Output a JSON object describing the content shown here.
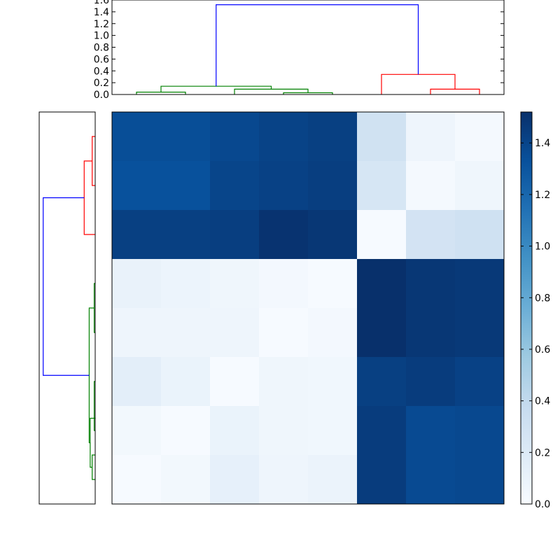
{
  "chart_data": [
    {
      "type": "dendrogram",
      "position": "top",
      "yaxis": {
        "range": [
          0,
          1.6
        ],
        "ticks": [
          0.0,
          0.2,
          0.4,
          0.6,
          0.8,
          1.0,
          1.2,
          1.4,
          1.6
        ],
        "tick_labels": [
          "0.0",
          "0.2",
          "0.4",
          "0.6",
          "0.8",
          "1.0",
          "1.2",
          "1.4",
          "1.6"
        ]
      },
      "leaf_count": 8,
      "links": [
        {
          "left": 0,
          "right": 1,
          "height": 0.04,
          "color": "green"
        },
        {
          "left": 3,
          "right": 4,
          "height": 0.03,
          "color": "green"
        },
        {
          "left": 2,
          "right": 3.5,
          "height": 0.09,
          "color": "green"
        },
        {
          "left": 0.5,
          "right": 2.75,
          "height": 0.14,
          "color": "green"
        },
        {
          "left": 6,
          "right": 7,
          "height": 0.09,
          "color": "red"
        },
        {
          "left": 5,
          "right": 6.5,
          "height": 0.34,
          "color": "red"
        },
        {
          "left": 1.625,
          "right": 5.75,
          "height": 1.52,
          "color": "blue"
        }
      ]
    },
    {
      "type": "dendrogram",
      "position": "left",
      "leaf_count": 8,
      "links": [
        {
          "top": 0,
          "bottom": 1,
          "height": 0.03,
          "color": "red"
        },
        {
          "top": 0.5,
          "bottom": 2,
          "height": 0.11,
          "color": "red"
        },
        {
          "top": 3,
          "bottom": 4,
          "height": 0.01,
          "color": "green"
        },
        {
          "top": 5,
          "bottom": 6,
          "height": 0.01,
          "color": "green"
        },
        {
          "top": 6.5,
          "bottom": 7,
          "height": 0.03,
          "color": "green"
        },
        {
          "top": 5.75,
          "bottom": 6.75,
          "height": 0.05,
          "color": "green"
        },
        {
          "top": 3.5,
          "bottom": 6.25,
          "height": 0.06,
          "color": "green"
        },
        {
          "top": 1.25,
          "bottom": 4.875,
          "height": 0.52,
          "color": "blue"
        }
      ]
    },
    {
      "type": "heatmap",
      "colormap": "Blues",
      "vmin": 0,
      "vmax": 1.52,
      "values": [
        [
          1.35,
          1.35,
          1.38,
          1.41,
          1.43,
          0.3,
          0.07,
          0.02
        ],
        [
          1.33,
          1.33,
          1.4,
          1.42,
          1.44,
          0.25,
          0.02,
          0.06
        ],
        [
          1.43,
          1.43,
          1.44,
          1.5,
          1.48,
          0.01,
          0.28,
          0.31
        ],
        [
          0.11,
          0.08,
          0.06,
          0.03,
          0.01,
          1.52,
          1.48,
          1.47
        ],
        [
          0.07,
          0.07,
          0.07,
          0.01,
          0.03,
          1.52,
          1.48,
          1.47
        ],
        [
          0.15,
          0.1,
          0.01,
          0.06,
          0.05,
          1.43,
          1.45,
          1.42
        ],
        [
          0.04,
          0.01,
          0.1,
          0.06,
          0.05,
          1.45,
          1.37,
          1.38
        ],
        [
          0.01,
          0.04,
          0.13,
          0.07,
          0.09,
          1.45,
          1.37,
          1.38
        ]
      ]
    },
    {
      "type": "colorbar",
      "range": [
        0,
        1.52
      ],
      "ticks": [
        0.0,
        0.2,
        0.4,
        0.6,
        0.8,
        1.0,
        1.2,
        1.4
      ],
      "tick_labels": [
        "0.0",
        "0.2",
        "0.4",
        "0.6",
        "0.8",
        "1.0",
        "1.2",
        "1.4"
      ]
    }
  ],
  "colors": {
    "green": "#008000",
    "red": "#ff0000",
    "blue": "#0000ff"
  }
}
